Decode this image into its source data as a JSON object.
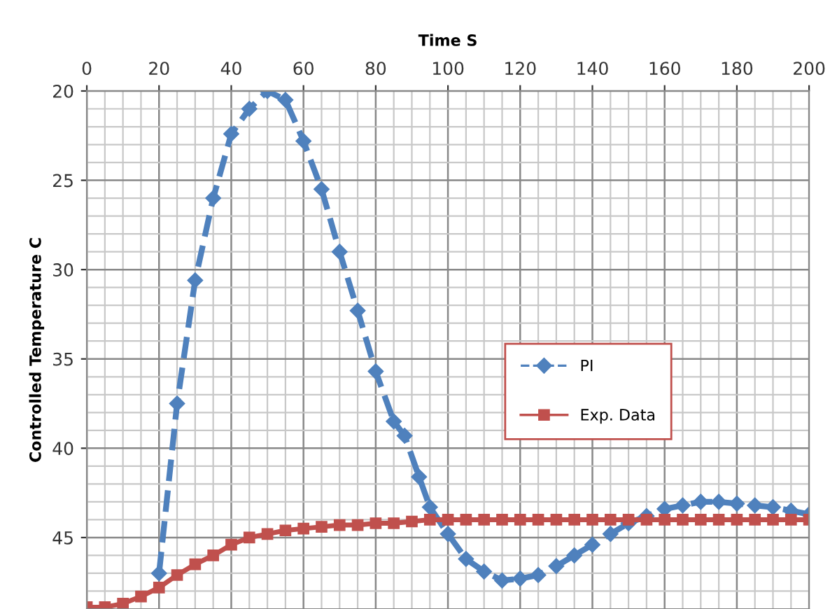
{
  "chart_data": {
    "type": "line",
    "xlabel": "Time S",
    "ylabel": "Controlled Temperature C",
    "xlim": [
      0,
      200
    ],
    "xticks": [
      0,
      20,
      40,
      60,
      80,
      100,
      120,
      140,
      160,
      180,
      200
    ],
    "ylim": [
      49,
      20
    ],
    "yticks": [
      20,
      25,
      30,
      35,
      40,
      45
    ],
    "grid": true,
    "legend": "right",
    "series": [
      {
        "name": "PI",
        "color": "#4f81bd",
        "marker": "diamond",
        "line_style": "dashed",
        "x": [
          20,
          25,
          30,
          35,
          40,
          45,
          50,
          55,
          60,
          65,
          70,
          75,
          80,
          85,
          88,
          92,
          95,
          100,
          105,
          110,
          115,
          120,
          125,
          130,
          135,
          140,
          145,
          150,
          155,
          160,
          165,
          170,
          175,
          180,
          185,
          190,
          195,
          200
        ],
        "values": [
          47,
          37.5,
          30.6,
          26,
          22.4,
          21,
          20,
          20.5,
          22.8,
          25.5,
          29,
          32.3,
          35.7,
          38.5,
          39.3,
          41.6,
          43.3,
          44.8,
          46.2,
          46.9,
          47.4,
          47.3,
          47.1,
          46.6,
          46,
          45.4,
          44.8,
          44.2,
          43.8,
          43.4,
          43.2,
          43,
          43,
          43.1,
          43.2,
          43.3,
          43.5,
          43.7
        ]
      },
      {
        "name": "Exp. Data",
        "color": "#c0504d",
        "marker": "square",
        "line_style": "solid",
        "x": [
          0,
          5,
          10,
          15,
          20,
          25,
          30,
          35,
          40,
          45,
          50,
          55,
          60,
          65,
          70,
          75,
          80,
          85,
          90,
          95,
          100,
          105,
          110,
          115,
          120,
          125,
          130,
          135,
          140,
          145,
          150,
          155,
          160,
          165,
          170,
          175,
          180,
          185,
          190,
          195,
          200
        ],
        "values": [
          48.9,
          48.9,
          48.7,
          48.3,
          47.8,
          47.1,
          46.5,
          46,
          45.4,
          45,
          44.8,
          44.6,
          44.5,
          44.4,
          44.3,
          44.3,
          44.2,
          44.2,
          44.1,
          44,
          44,
          44,
          44,
          44,
          44,
          44,
          44,
          44,
          44,
          44,
          44,
          44,
          44,
          44,
          44,
          44,
          44,
          44,
          44,
          44,
          44
        ]
      }
    ]
  }
}
